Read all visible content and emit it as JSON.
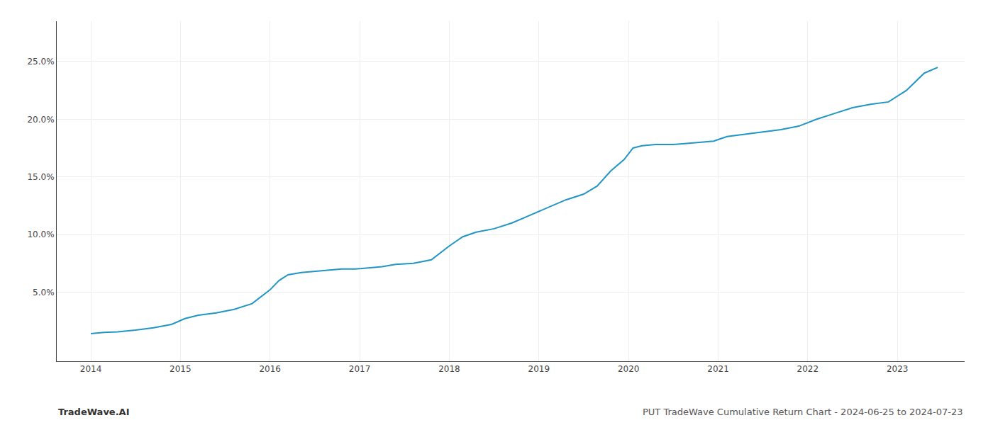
{
  "chart_data": {
    "type": "line",
    "x": [
      2014.0,
      2014.15,
      2014.3,
      2014.5,
      2014.7,
      2014.9,
      2015.05,
      2015.2,
      2015.4,
      2015.6,
      2015.8,
      2016.0,
      2016.1,
      2016.2,
      2016.35,
      2016.5,
      2016.65,
      2016.8,
      2016.95,
      2017.1,
      2017.25,
      2017.4,
      2017.6,
      2017.8,
      2018.0,
      2018.15,
      2018.3,
      2018.5,
      2018.7,
      2018.85,
      2019.0,
      2019.15,
      2019.3,
      2019.5,
      2019.65,
      2019.8,
      2019.95,
      2020.05,
      2020.15,
      2020.3,
      2020.5,
      2020.65,
      2020.8,
      2020.95,
      2021.1,
      2021.3,
      2021.5,
      2021.7,
      2021.9,
      2022.1,
      2022.3,
      2022.5,
      2022.7,
      2022.9,
      2023.1,
      2023.3,
      2023.45
    ],
    "values": [
      1.4,
      1.5,
      1.55,
      1.7,
      1.9,
      2.2,
      2.7,
      3.0,
      3.2,
      3.5,
      4.0,
      5.2,
      6.0,
      6.5,
      6.7,
      6.8,
      6.9,
      7.0,
      7.0,
      7.1,
      7.2,
      7.4,
      7.5,
      7.8,
      9.0,
      9.8,
      10.2,
      10.5,
      11.0,
      11.5,
      12.0,
      12.5,
      13.0,
      13.5,
      14.2,
      15.5,
      16.5,
      17.5,
      17.7,
      17.8,
      17.8,
      17.9,
      18.0,
      18.1,
      18.5,
      18.7,
      18.9,
      19.1,
      19.4,
      20.0,
      20.5,
      21.0,
      21.3,
      21.5,
      22.5,
      24.0,
      24.5
    ],
    "color": "#2196c4",
    "xlim": [
      2013.62,
      2023.75
    ],
    "xticks": [
      2014,
      2015,
      2016,
      2017,
      2018,
      2019,
      2020,
      2021,
      2022,
      2023
    ],
    "ylim": [
      -1.0,
      28.5
    ],
    "yticks": [
      {
        "value": 5,
        "label": "5.0%"
      },
      {
        "value": 10,
        "label": "10.0%"
      },
      {
        "value": 15,
        "label": "15.0%"
      },
      {
        "value": 20,
        "label": "20.0%"
      },
      {
        "value": 25,
        "label": "25.0%"
      }
    ],
    "grid": true,
    "annotations": [
      "TradeWave.AI",
      "PUT TradeWave Cumulative Return Chart - 2024-06-25 to 2024-07-23"
    ]
  }
}
